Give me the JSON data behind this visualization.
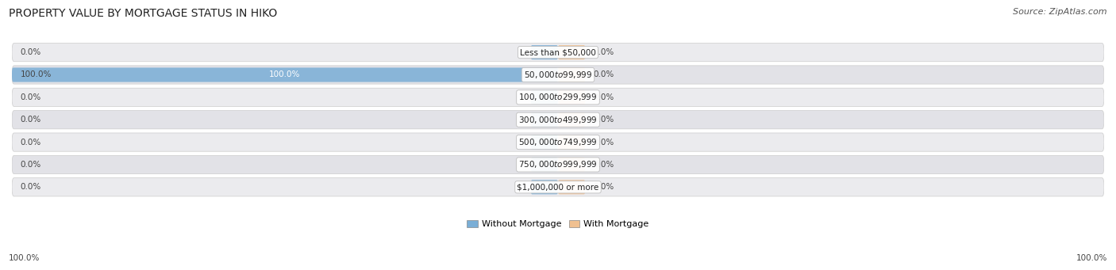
{
  "title": "PROPERTY VALUE BY MORTGAGE STATUS IN HIKO",
  "source": "Source: ZipAtlas.com",
  "categories": [
    "Less than $50,000",
    "$50,000 to $99,999",
    "$100,000 to $299,999",
    "$300,000 to $499,999",
    "$500,000 to $749,999",
    "$750,000 to $999,999",
    "$1,000,000 or more"
  ],
  "without_mortgage": [
    0.0,
    100.0,
    0.0,
    0.0,
    0.0,
    0.0,
    0.0
  ],
  "with_mortgage": [
    0.0,
    0.0,
    0.0,
    0.0,
    0.0,
    0.0,
    0.0
  ],
  "without_mortgage_color": "#7aaed6",
  "with_mortgage_color": "#f0c090",
  "title_fontsize": 10,
  "label_fontsize": 7.5,
  "legend_fontsize": 8,
  "source_fontsize": 8,
  "max_value": 100.0,
  "min_bar_width": 5.0,
  "row_colors": [
    "#e8e8ec",
    "#dcdce4"
  ],
  "row_bg_light": "#ededf0",
  "row_bg_dark": "#e0e0e5"
}
